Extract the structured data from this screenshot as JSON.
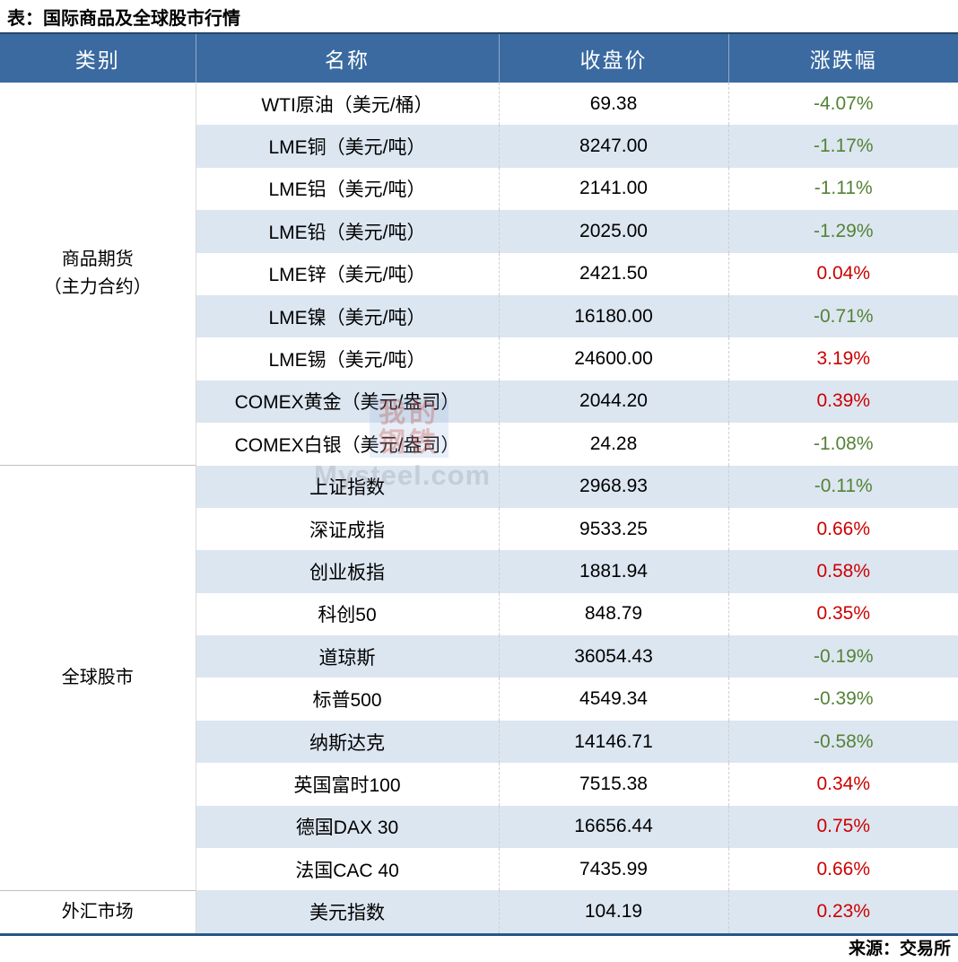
{
  "page": {
    "title": "表：国际商品及全球股市行情",
    "source": "来源：交易所"
  },
  "colors": {
    "header_bg": "#3A6AA0",
    "header_border": "#26466B",
    "row_alt": "#DCE6F1",
    "up_red": "#CC0000",
    "down_green": "#548235",
    "bottom_border": "#2A5586"
  },
  "table": {
    "headers": {
      "category": "类别",
      "name": "名称",
      "close": "收盘价",
      "change": "涨跌幅"
    },
    "groups": [
      {
        "category_lines": [
          "商品期货",
          "（主力合约）"
        ],
        "rows": [
          {
            "name": "WTI原油（美元/桶）",
            "close": "69.38",
            "change": "-4.07%"
          },
          {
            "name": "LME铜（美元/吨）",
            "close": "8247.00",
            "change": "-1.17%"
          },
          {
            "name": "LME铝（美元/吨）",
            "close": "2141.00",
            "change": "-1.11%"
          },
          {
            "name": "LME铅（美元/吨）",
            "close": "2025.00",
            "change": "-1.29%"
          },
          {
            "name": "LME锌（美元/吨）",
            "close": "2421.50",
            "change": "0.04%"
          },
          {
            "name": "LME镍（美元/吨）",
            "close": "16180.00",
            "change": "-0.71%"
          },
          {
            "name": "LME锡（美元/吨）",
            "close": "24600.00",
            "change": "3.19%"
          },
          {
            "name": "COMEX黄金（美元/盎司）",
            "close": "2044.20",
            "change": "0.39%"
          },
          {
            "name": "COMEX白银（美元/盎司）",
            "close": "24.28",
            "change": "-1.08%"
          }
        ]
      },
      {
        "category_lines": [
          "全球股市"
        ],
        "rows": [
          {
            "name": "上证指数",
            "close": "2968.93",
            "change": "-0.11%"
          },
          {
            "name": "深证成指",
            "close": "9533.25",
            "change": "0.66%"
          },
          {
            "name": "创业板指",
            "close": "1881.94",
            "change": "0.58%"
          },
          {
            "name": "科创50",
            "close": "848.79",
            "change": "0.35%"
          },
          {
            "name": "道琼斯",
            "close": "36054.43",
            "change": "-0.19%"
          },
          {
            "name": "标普500",
            "close": "4549.34",
            "change": "-0.39%"
          },
          {
            "name": "纳斯达克",
            "close": "14146.71",
            "change": "-0.58%"
          },
          {
            "name": "英国富时100",
            "close": "7515.38",
            "change": "0.34%"
          },
          {
            "name": "德国DAX 30",
            "close": "16656.44",
            "change": "0.75%"
          },
          {
            "name": "法国CAC 40",
            "close": "7435.99",
            "change": "0.66%"
          }
        ]
      },
      {
        "category_lines": [
          "外汇市场"
        ],
        "rows": [
          {
            "name": "美元指数",
            "close": "104.19",
            "change": "0.23%"
          }
        ]
      }
    ]
  },
  "watermark": {
    "logo_line1": "我的",
    "logo_line2": "钢铁",
    "text": "Mysteel.com"
  }
}
